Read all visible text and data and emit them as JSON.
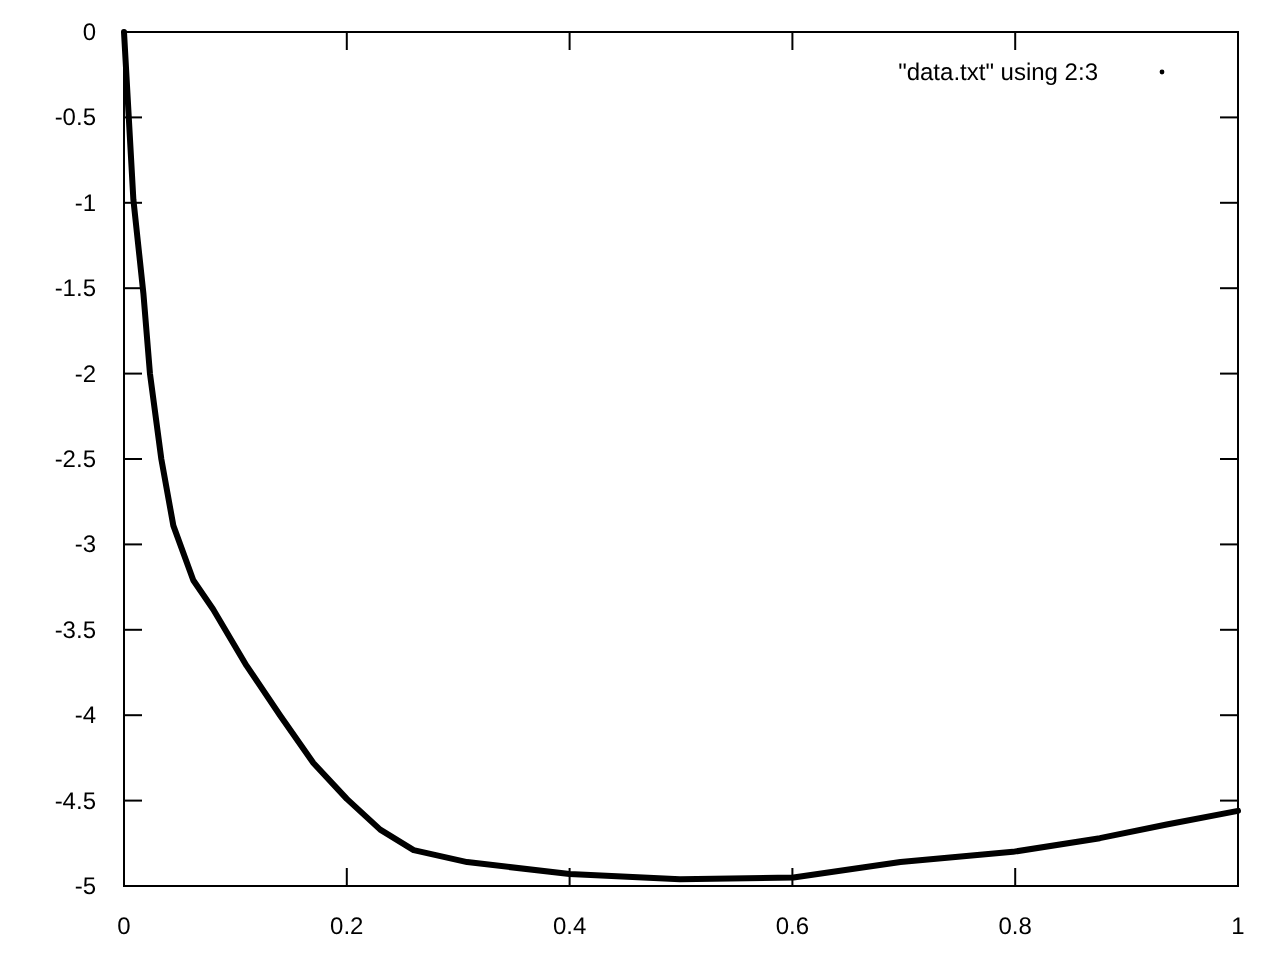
{
  "chart_data": {
    "type": "line",
    "legend": "top right",
    "xlim": [
      0,
      1
    ],
    "xticks": [
      0,
      0.2,
      0.4,
      0.6,
      0.8,
      1
    ],
    "ylim": [
      -5,
      0
    ],
    "yticks": [
      0,
      -0.5,
      -1,
      -1.5,
      -2,
      -2.5,
      -3,
      -3.5,
      -4,
      -4.5,
      -5
    ],
    "series": [
      {
        "name": "\"data.txt\" using 2:3",
        "color": "#000000",
        "x": [
          0,
          0.0084,
          0.0174,
          0.0233,
          0.0335,
          0.0443,
          0.0622,
          0.08,
          0.11,
          0.14,
          0.17,
          0.2,
          0.23,
          0.26,
          0.308,
          0.4,
          0.499,
          0.601,
          0.697,
          0.798,
          0.876,
          0.936,
          1
        ],
        "values": [
          0,
          -0.98,
          -1.53,
          -2.0,
          -2.5,
          -2.89,
          -3.21,
          -3.38,
          -3.71,
          -4.0,
          -4.28,
          -4.49,
          -4.67,
          -4.79,
          -4.86,
          -4.93,
          -4.96,
          -4.95,
          -4.86,
          -4.8,
          -4.72,
          -4.64,
          -4.56
        ]
      }
    ]
  }
}
